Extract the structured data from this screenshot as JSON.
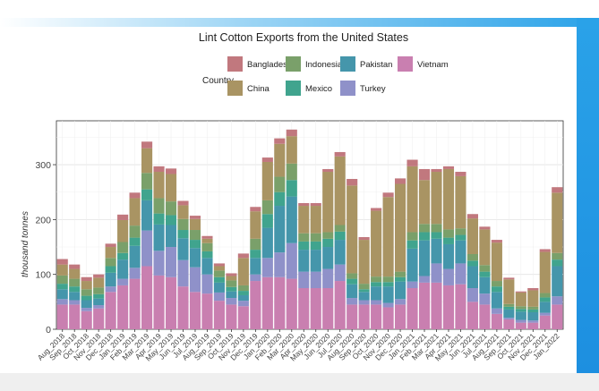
{
  "chart_data": {
    "type": "bar",
    "stacked": true,
    "title": "Lint Cotton Exports from the United States",
    "legend_title": "Country",
    "legend_position": "top",
    "xlabel": "",
    "ylabel": "thousand tonnes",
    "ylim": [
      0,
      380
    ],
    "y_ticks": [
      0,
      100,
      200,
      300
    ],
    "grid": true,
    "categories": [
      "Aug_2018",
      "Sep_2018",
      "Oct_2018",
      "Nov_2018",
      "Dec_2018",
      "Jan_2019",
      "Feb_2019",
      "Mar_2019",
      "Apr_2019",
      "May_2019",
      "Jun_2019",
      "Jul_2019",
      "Aug_2019",
      "Sep_2019",
      "Oct_2019",
      "Nov_2019",
      "Dec_2019",
      "Jan_2020",
      "Feb_2020",
      "Mar_2020",
      "Apr_2020",
      "May_2020",
      "Jun_2020",
      "Jul_2020",
      "Aug_2020",
      "Sep_2020",
      "Oct_2020",
      "Nov_2020",
      "Dec_2020",
      "Jan_2021",
      "Feb_2021",
      "Mar_2021",
      "Apr_2021",
      "May_2021",
      "Jun_2021",
      "Jul_2021",
      "Aug_2021",
      "Sep_2021",
      "Oct_2021",
      "Nov_2021",
      "Dec_2021",
      "Jan_2022"
    ],
    "x_tick_labels": [
      "Aug_2018",
      "Sep_2018",
      "Oct_2018",
      "Nov_2018",
      "Dec_2018",
      "Jan_2019",
      "Feb_2019",
      "Mar_2019",
      "Apr_2019",
      "May_2019",
      "Jun_2019",
      "Jul_2019",
      "Aug_2019",
      "Sep_2019",
      "Oct_2019",
      "Nov_2019",
      "Dec_2019",
      "Jan_2020",
      "Feb_2020",
      "Mar_2020",
      "Apr_2020",
      "May_2020",
      "Jun_2020",
      "Jul_2020",
      "Aug_2020",
      "Sep_2020",
      "Oct_2020",
      "Nov_2020",
      "Dec_2020",
      "Jan_2021",
      "Feb_2021",
      "Mar_2021",
      "Apr_2021",
      "May_2021",
      "Jun_2021",
      "Jul_2021",
      "Aug_2021",
      "Sep_2021",
      "Oct_2021",
      "Nov_2021",
      "Dec_2021",
      "Jan_2022"
    ],
    "series": [
      {
        "name": "Vietnam",
        "color": "#c97fb0",
        "values": [
          45,
          45,
          33,
          38,
          68,
          80,
          92,
          115,
          98,
          95,
          78,
          68,
          65,
          52,
          45,
          42,
          88,
          95,
          95,
          92,
          75,
          75,
          75,
          88,
          45,
          45,
          45,
          40,
          45,
          75,
          85,
          85,
          80,
          82,
          50,
          45,
          28,
          18,
          12,
          12,
          25,
          45
        ]
      },
      {
        "name": "Turkey",
        "color": "#8f91c9",
        "values": [
          10,
          8,
          6,
          6,
          10,
          12,
          20,
          65,
          45,
          55,
          48,
          45,
          35,
          15,
          12,
          10,
          12,
          35,
          45,
          65,
          30,
          30,
          35,
          30,
          12,
          8,
          8,
          8,
          10,
          12,
          12,
          35,
          30,
          38,
          25,
          20,
          10,
          3,
          5,
          4,
          5,
          15
        ]
      },
      {
        "name": "Pakistan",
        "color": "#4596ab",
        "values": [
          18,
          15,
          14,
          12,
          25,
          35,
          40,
          55,
          48,
          40,
          40,
          35,
          30,
          18,
          12,
          10,
          30,
          55,
          85,
          85,
          40,
          40,
          40,
          45,
          25,
          15,
          25,
          30,
          32,
          60,
          65,
          45,
          45,
          42,
          40,
          30,
          30,
          15,
          15,
          15,
          20,
          55
        ]
      },
      {
        "name": "Mexico",
        "color": "#40a48e",
        "values": [
          10,
          10,
          8,
          8,
          12,
          12,
          15,
          20,
          20,
          18,
          15,
          15,
          12,
          10,
          8,
          8,
          15,
          25,
          25,
          30,
          15,
          15,
          15,
          15,
          10,
          5,
          8,
          8,
          8,
          15,
          15,
          12,
          12,
          10,
          10,
          10,
          10,
          5,
          5,
          5,
          8,
          12
        ]
      },
      {
        "name": "Indonesia",
        "color": "#7aa06a",
        "values": [
          15,
          14,
          12,
          12,
          15,
          20,
          22,
          30,
          28,
          25,
          20,
          18,
          15,
          12,
          12,
          10,
          20,
          25,
          28,
          30,
          15,
          15,
          12,
          12,
          10,
          10,
          10,
          10,
          10,
          15,
          15,
          15,
          15,
          12,
          12,
          12,
          10,
          5,
          5,
          5,
          8,
          12
        ]
      },
      {
        "name": "China",
        "color": "#a99463",
        "values": [
          20,
          18,
          15,
          18,
          20,
          40,
          50,
          45,
          48,
          50,
          25,
          20,
          8,
          8,
          8,
          50,
          50,
          70,
          60,
          50,
          50,
          50,
          110,
          125,
          160,
          80,
          120,
          145,
          160,
          120,
          80,
          95,
          110,
          95,
          65,
          65,
          70,
          45,
          25,
          30,
          75,
          110
        ]
      },
      {
        "name": "Bangladesh",
        "color": "#c1787e",
        "values": [
          10,
          8,
          7,
          6,
          6,
          10,
          10,
          12,
          10,
          10,
          8,
          6,
          5,
          5,
          5,
          8,
          8,
          8,
          10,
          12,
          5,
          5,
          5,
          8,
          12,
          5,
          5,
          8,
          10,
          12,
          20,
          5,
          5,
          8,
          8,
          5,
          5,
          3,
          2,
          4,
          5,
          10
        ]
      }
    ],
    "legend_order": [
      "Bangladesh",
      "China",
      "Indonesia",
      "Mexico",
      "Pakistan",
      "Turkey",
      "Vietnam"
    ]
  }
}
